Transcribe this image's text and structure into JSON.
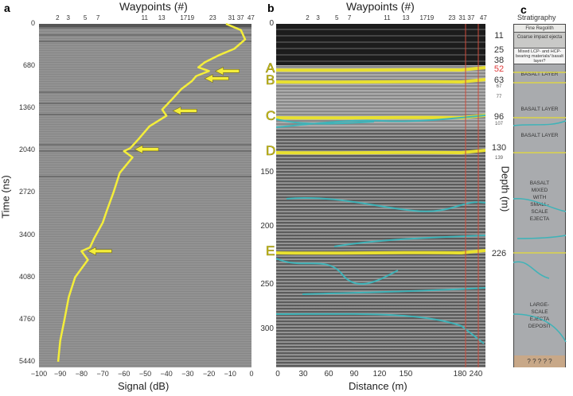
{
  "panel_a": {
    "letter": "a",
    "title": "Waypoints (#)",
    "ylabel": "Time (ns)",
    "xlabel": "Signal (dB)"
  },
  "panel_b": {
    "letter": "b",
    "title": "Waypoints (#)",
    "xlabel": "Distance (m)",
    "right_label": "Depth (m)",
    "horizon_labels": [
      "A",
      "B",
      "C",
      "D",
      "E"
    ]
  },
  "panel_c": {
    "letter": "c",
    "title": "Stratigraphy",
    "layers": [
      "Fine Regolith",
      "Coarse impact ejecta",
      "Mixed LCP- and HCP-bearing materials/ basalt layer?"
    ],
    "units": [
      "BASALT LAYER",
      "BASALT LAYER",
      "BASALT LAYER",
      "BASALT MIXED WITH SMALL-SCALE EJECTA",
      "LARGE-SCALE EJECTA DEPOSIT"
    ],
    "bottom": "? ? ? ? ?"
  },
  "waypoints": [
    "2",
    "3",
    "5",
    "7",
    "11",
    "13",
    "1719",
    "23",
    "31 37",
    "47"
  ],
  "depth_labels": [
    {
      "v": "11",
      "big": true
    },
    {
      "v": "25",
      "big": true
    },
    {
      "v": "38",
      "big": true
    },
    {
      "v": "52",
      "big": true,
      "red": true
    },
    {
      "v": "63",
      "big": true
    },
    {
      "v": "67",
      "big": false
    },
    {
      "v": "77",
      "big": false
    },
    {
      "v": "96",
      "big": true
    },
    {
      "v": "107",
      "big": false
    },
    {
      "v": "130",
      "big": true
    },
    {
      "v": "139",
      "big": false
    },
    {
      "v": "226",
      "big": true
    }
  ],
  "colors": {
    "signal": "#f4ee3a",
    "horizon": "#e8e030",
    "teal": "#3fb3b8",
    "red": "#d04a3a",
    "depth_red": "#e03a3a"
  },
  "chart_data": [
    {
      "type": "line",
      "title": "Waypoints (#)",
      "xlabel": "Signal (dB)",
      "ylabel": "Time (ns)",
      "xlim": [
        -100,
        0
      ],
      "ylim": [
        5440,
        0
      ],
      "xticks": [
        "−100",
        "−90",
        "−80",
        "−70",
        "−60",
        "−50",
        "−40",
        "−30",
        "−20",
        "−10",
        "0"
      ],
      "yticks": [
        "0",
        "680",
        "1360",
        "2040",
        "2720",
        "3400",
        "4080",
        "4760",
        "5440"
      ],
      "series": [
        {
          "name": "signal",
          "x": [
            -12,
            -5,
            -3,
            -8,
            -15,
            -22,
            -25,
            -20,
            -26,
            -28,
            -33,
            -37,
            -42,
            -40,
            -48,
            -53,
            -57,
            -60,
            -56,
            -62,
            -65,
            -68,
            -70,
            -74,
            -76,
            -80,
            -77,
            -83,
            -86,
            -88,
            -90,
            -91
          ],
          "y": [
            0,
            100,
            250,
            400,
            500,
            620,
            700,
            760,
            840,
            920,
            1050,
            1200,
            1380,
            1480,
            1650,
            1850,
            2000,
            2050,
            2150,
            2400,
            2720,
            3000,
            3200,
            3450,
            3600,
            3660,
            3800,
            4080,
            4400,
            4760,
            5100,
            5440
          ]
        }
      ],
      "arrows": [
        {
          "t": 760,
          "db": -20
        },
        {
          "t": 880,
          "db": -25
        },
        {
          "t": 1400,
          "db": -40
        },
        {
          "t": 2020,
          "db": -58
        },
        {
          "t": 3660,
          "db": -80
        }
      ]
    },
    {
      "type": "heatmap",
      "title": "Waypoints (#)",
      "xlabel": "Distance (m)",
      "xticks": [
        "0",
        "30",
        "60",
        "90",
        "120",
        "150",
        "180",
        "240"
      ],
      "yticks": [
        "0",
        "150",
        "200",
        "250",
        "300"
      ]
    }
  ]
}
